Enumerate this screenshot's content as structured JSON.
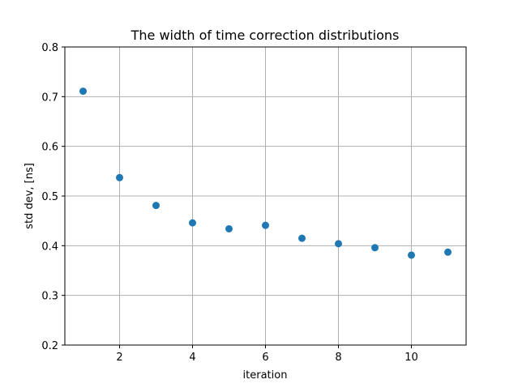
{
  "chart_data": {
    "type": "scatter",
    "title": "The width of time correction distributions",
    "xlabel": "iteration",
    "ylabel": "std dev, [ns]",
    "xlim": [
      0.5,
      11.5
    ],
    "ylim": [
      0.2,
      0.8
    ],
    "xticks": [
      2,
      4,
      6,
      8,
      10
    ],
    "yticks": [
      0.2,
      0.3,
      0.4,
      0.5,
      0.6,
      0.7,
      0.8
    ],
    "xtick_labels": [
      "2",
      "4",
      "6",
      "8",
      "10"
    ],
    "ytick_labels": [
      "0.2",
      "0.3",
      "0.4",
      "0.5",
      "0.6",
      "0.7",
      "0.8"
    ],
    "grid": true,
    "marker_color": "#1f77b4",
    "series": [
      {
        "x": [
          1,
          2,
          3,
          4,
          5,
          6,
          7,
          8,
          9,
          10,
          11
        ],
        "y": [
          0.711,
          0.537,
          0.481,
          0.446,
          0.434,
          0.441,
          0.415,
          0.404,
          0.396,
          0.381,
          0.387
        ]
      }
    ]
  }
}
